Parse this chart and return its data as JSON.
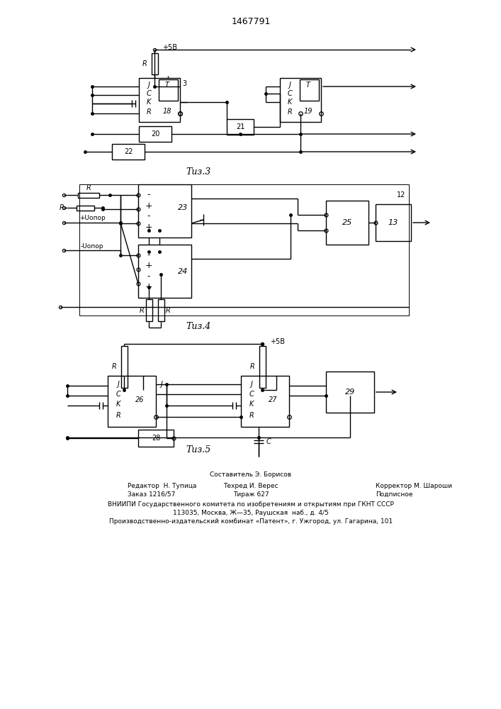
{
  "title": "1467791",
  "fig3_label": "Τиз.3",
  "fig4_label": "Τиз.4",
  "fig5_label": "Τиз.5",
  "background_color": "#ffffff",
  "line_color": "#000000",
  "footer_line0": "Составитель Э. Борисов",
  "footer_line1_l": "Редактор  Н. Тупица",
  "footer_line1_c": "Техред И. Верес",
  "footer_line1_r": "Корректор М. Шароши",
  "footer_line2_l": "Заказ 1216/57",
  "footer_line2_c": "Тираж 627",
  "footer_line2_r": "Подписное",
  "footer_line3": "ВНИИПИ Государственного комитета по изобретениям и открытиям при ГКНТ СССР",
  "footer_line4": "113035, Москва, Ж—35, Раушская  наб., д. 4/5",
  "footer_line5": "Производственно-издательский комбинат «Патент», г. Ужгород, ул. Гагарина, 101"
}
